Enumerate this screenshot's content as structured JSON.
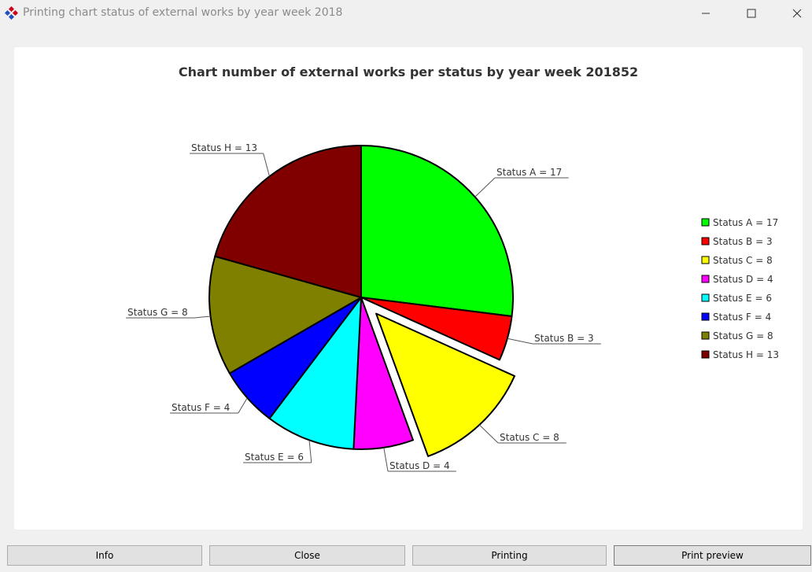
{
  "window": {
    "title": "Printing chart status of external works by year week 2018",
    "icon": "app-logo-icon"
  },
  "chart_data": {
    "type": "pie",
    "title": "Chart number of external works per status by year week 201852",
    "categories": [
      "Status A",
      "Status B",
      "Status C",
      "Status D",
      "Status E",
      "Status F",
      "Status G",
      "Status H"
    ],
    "values": [
      17,
      3,
      8,
      4,
      6,
      4,
      8,
      13
    ],
    "labels": [
      "Status A = 17",
      "Status B = 3",
      "Status C = 8",
      "Status D = 4",
      "Status E = 6",
      "Status F = 4",
      "Status G = 8",
      "Status H = 13"
    ],
    "colors": [
      "#00ff00",
      "#ff0000",
      "#ffff00",
      "#ff00ff",
      "#00ffff",
      "#0000ff",
      "#808000",
      "#800000"
    ],
    "exploded": [
      "Status C"
    ],
    "legend_position": "right",
    "start": "top, clockwise"
  },
  "buttons": {
    "info": "Info",
    "close": "Close",
    "printing": "Printing",
    "print_preview": "Print preview"
  }
}
